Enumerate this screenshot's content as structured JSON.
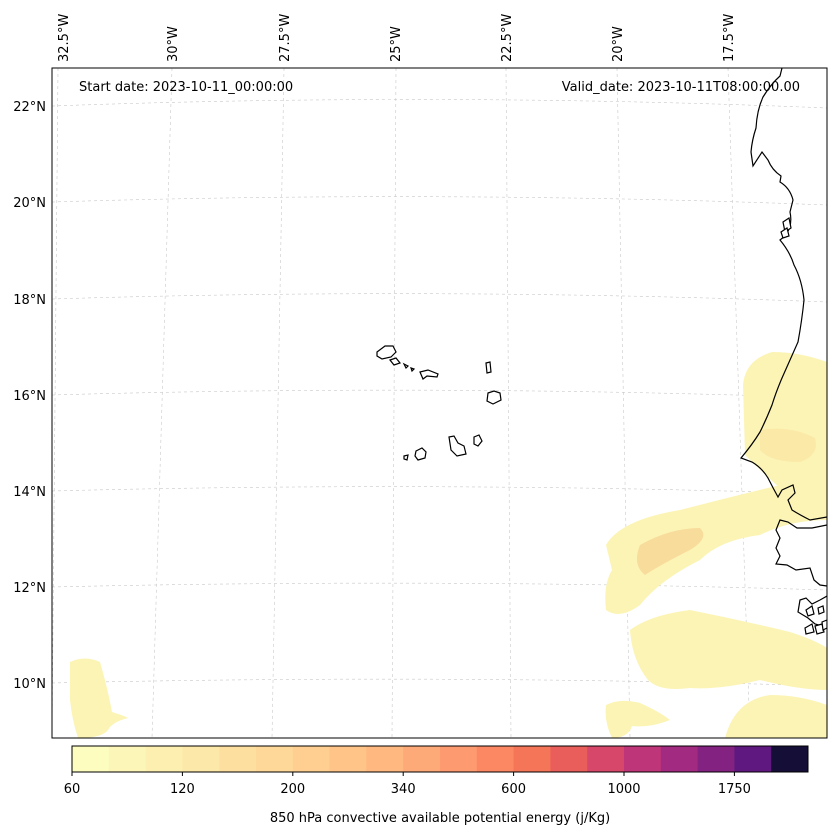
{
  "header": {
    "start_date": "Start date: 2023-10-11_00:00:00",
    "valid_date": "Valid_date: 2023-10-11T08:00:00.00"
  },
  "axes": {
    "lon_labels": [
      "32.5°W",
      "30°W",
      "27.5°W",
      "25°W",
      "22.5°W",
      "20°W",
      "17.5°W"
    ],
    "lat_labels": [
      "22°N",
      "20°N",
      "18°N",
      "16°N",
      "14°N",
      "12°N",
      "10°N"
    ]
  },
  "colorbar": {
    "label": "850 hPa convective available potential energy (j/Kg)",
    "tick_labels": [
      "60",
      "120",
      "200",
      "340",
      "600",
      "1000",
      "1750"
    ],
    "colors": [
      "#fcfdbf",
      "#fcf6b8",
      "#fcefb0",
      "#fce8a8",
      "#fde0a0",
      "#fed898",
      "#fecf90",
      "#fec488",
      "#feb880",
      "#fea978",
      "#fe9a6f",
      "#fb8862",
      "#f57558",
      "#e95e5a",
      "#d6476a",
      "#bf3579",
      "#a22a80",
      "#832281",
      "#5f187f",
      "#150e37"
    ]
  },
  "cape_colors": {
    "level1": "#fcf4b5",
    "level2": "#fbe9a8",
    "level3": "#f8dc9c"
  }
}
